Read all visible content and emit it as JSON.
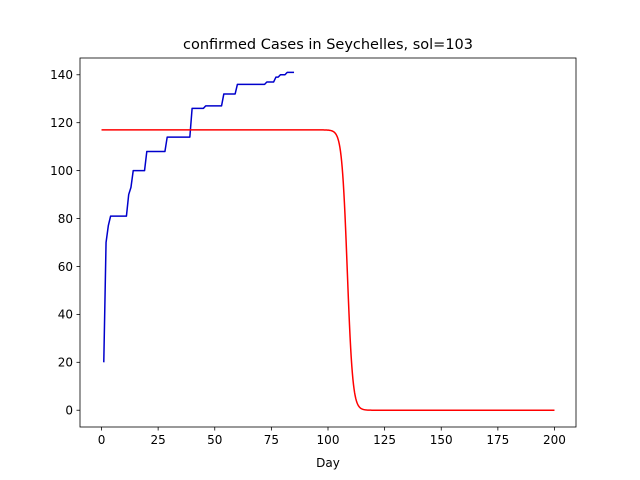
{
  "chart_data": {
    "type": "line",
    "title": "confirmed Cases in Seychelles, sol=103",
    "xlabel": "Day",
    "ylabel": "",
    "xlim": [
      -9.5,
      209.5
    ],
    "ylim": [
      -7,
      147
    ],
    "xticks": [
      0,
      25,
      50,
      75,
      100,
      125,
      150,
      175,
      200
    ],
    "yticks": [
      0,
      20,
      40,
      60,
      80,
      100,
      120,
      140
    ],
    "grid": false,
    "series": [
      {
        "color": "#0000cc",
        "points": [
          [
            1,
            20
          ],
          [
            2,
            70
          ],
          [
            3,
            77
          ],
          [
            4,
            81
          ],
          [
            5,
            81
          ],
          [
            6,
            81
          ],
          [
            7,
            81
          ],
          [
            8,
            81
          ],
          [
            9,
            81
          ],
          [
            10,
            81
          ],
          [
            11,
            81
          ],
          [
            12,
            90
          ],
          [
            13,
            93
          ],
          [
            14,
            100
          ],
          [
            15,
            100
          ],
          [
            16,
            100
          ],
          [
            17,
            100
          ],
          [
            18,
            100
          ],
          [
            19,
            100
          ],
          [
            20,
            108
          ],
          [
            21,
            108
          ],
          [
            22,
            108
          ],
          [
            23,
            108
          ],
          [
            24,
            108
          ],
          [
            25,
            108
          ],
          [
            26,
            108
          ],
          [
            27,
            108
          ],
          [
            28,
            108
          ],
          [
            29,
            114
          ],
          [
            30,
            114
          ],
          [
            31,
            114
          ],
          [
            32,
            114
          ],
          [
            33,
            114
          ],
          [
            34,
            114
          ],
          [
            35,
            114
          ],
          [
            36,
            114
          ],
          [
            37,
            114
          ],
          [
            38,
            114
          ],
          [
            39,
            114
          ],
          [
            40,
            126
          ],
          [
            41,
            126
          ],
          [
            42,
            126
          ],
          [
            43,
            126
          ],
          [
            44,
            126
          ],
          [
            45,
            126
          ],
          [
            46,
            127
          ],
          [
            47,
            127
          ],
          [
            48,
            127
          ],
          [
            49,
            127
          ],
          [
            50,
            127
          ],
          [
            51,
            127
          ],
          [
            52,
            127
          ],
          [
            53,
            127
          ],
          [
            54,
            132
          ],
          [
            55,
            132
          ],
          [
            56,
            132
          ],
          [
            57,
            132
          ],
          [
            58,
            132
          ],
          [
            59,
            132
          ],
          [
            60,
            136
          ],
          [
            61,
            136
          ],
          [
            62,
            136
          ],
          [
            63,
            136
          ],
          [
            64,
            136
          ],
          [
            65,
            136
          ],
          [
            66,
            136
          ],
          [
            67,
            136
          ],
          [
            68,
            136
          ],
          [
            69,
            136
          ],
          [
            70,
            136
          ],
          [
            71,
            136
          ],
          [
            72,
            136
          ],
          [
            73,
            137
          ],
          [
            74,
            137
          ],
          [
            75,
            137
          ],
          [
            76,
            137
          ],
          [
            77,
            139
          ],
          [
            78,
            139
          ],
          [
            79,
            140
          ],
          [
            80,
            140
          ],
          [
            81,
            140
          ],
          [
            82,
            141
          ],
          [
            83,
            141
          ],
          [
            84,
            141
          ],
          [
            85,
            141
          ]
        ]
      },
      {
        "color": "#ff0000",
        "model": {
          "plateau": 117,
          "midpoint": 108.5,
          "width": 1.2,
          "x_start": 0,
          "x_end": 200
        }
      }
    ]
  }
}
